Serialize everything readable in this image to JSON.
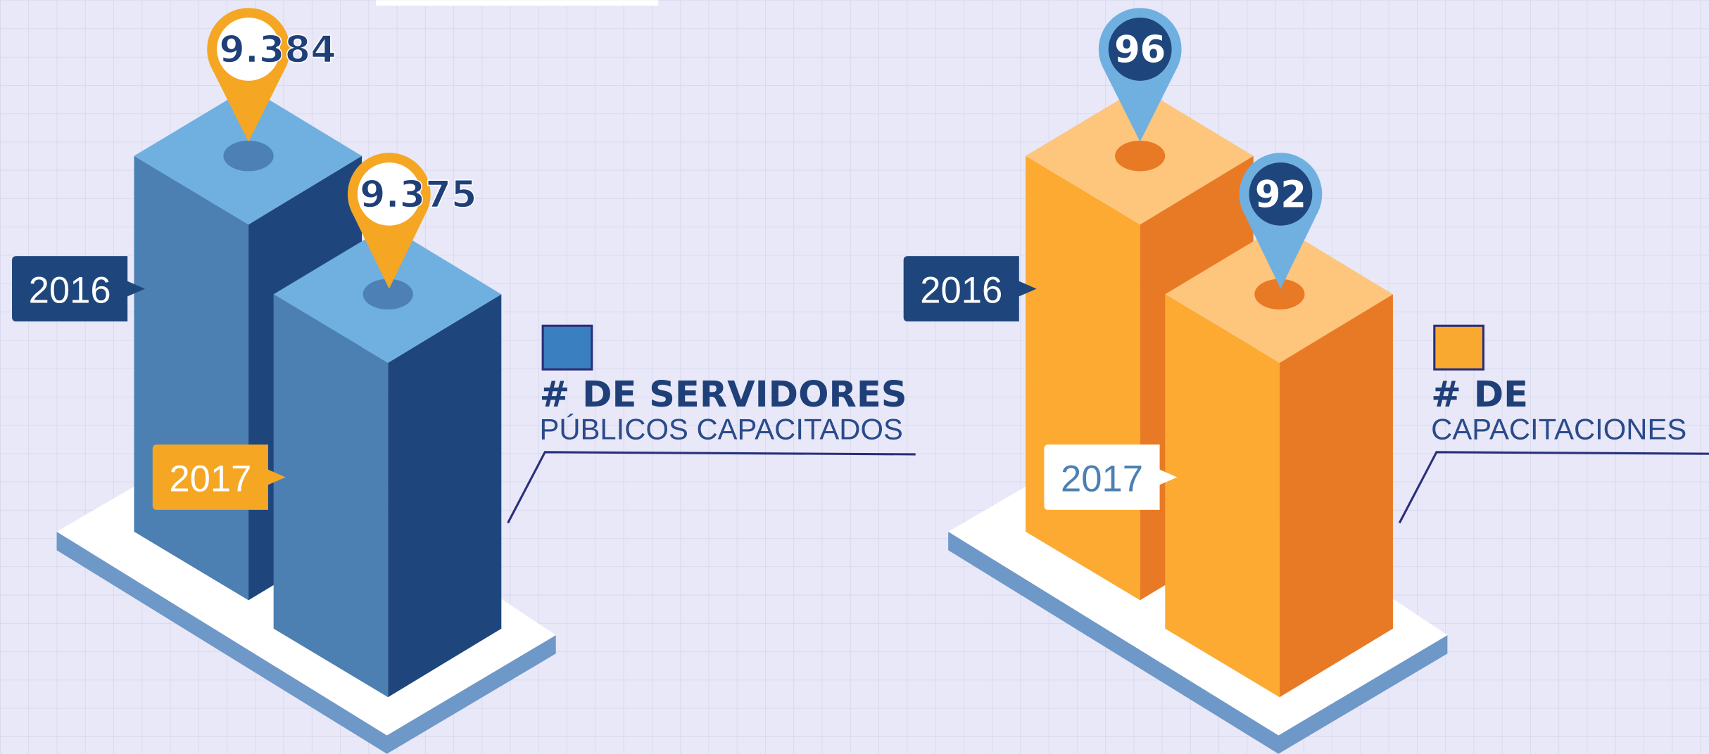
{
  "panels": [
    {
      "label": {
        "line1": "# DE SERVIDORES",
        "line2": "PÚBLICOS CAPACITADOS"
      },
      "bars": [
        {
          "year": "2016",
          "value": "9.384"
        },
        {
          "year": "2017",
          "value": "9.375"
        }
      ]
    },
    {
      "label": {
        "line1": "# DE",
        "line2": "CAPACITACIONES"
      },
      "bars": [
        {
          "year": "2016",
          "value": "96"
        },
        {
          "year": "2017",
          "value": "92"
        }
      ]
    }
  ]
}
